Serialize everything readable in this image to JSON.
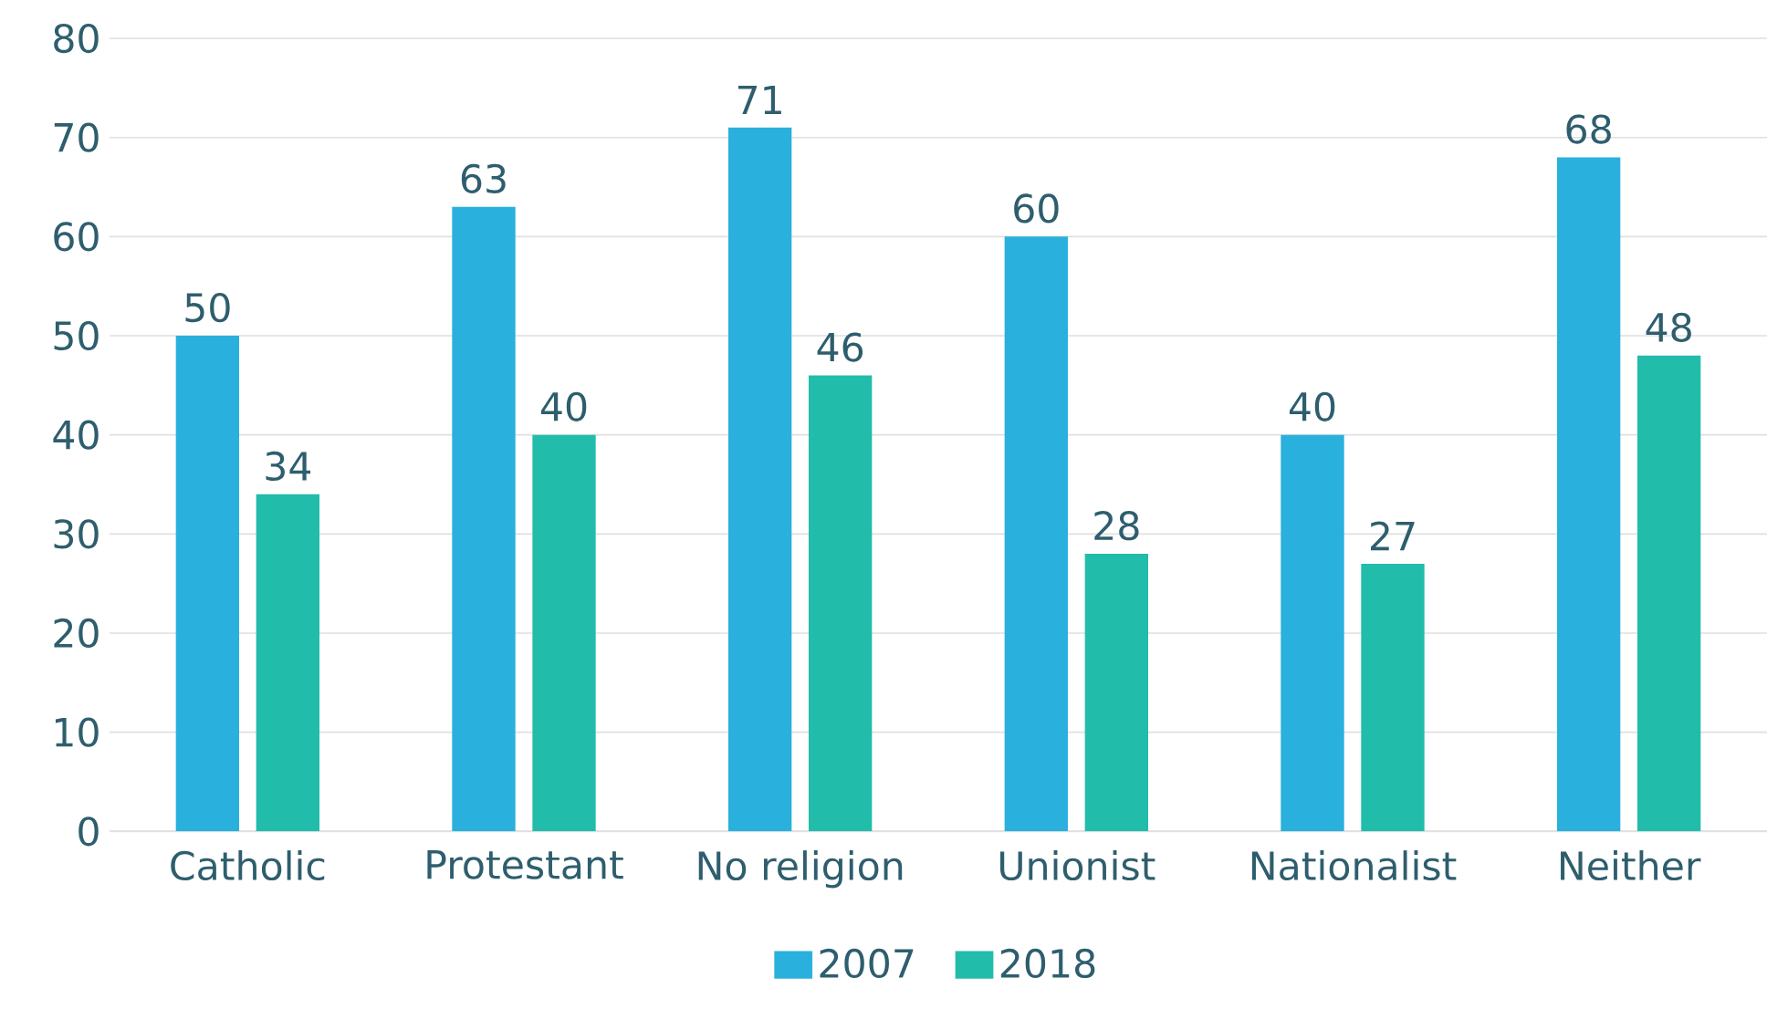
{
  "chart_data": {
    "type": "bar",
    "categories": [
      "Catholic",
      "Protestant",
      "No religion",
      "Unionist",
      "Nationalist",
      "Neither"
    ],
    "series": [
      {
        "name": "2007",
        "color": "#2ab0dc",
        "values": [
          50,
          63,
          71,
          60,
          40,
          68
        ]
      },
      {
        "name": "2018",
        "color": "#22bcaa",
        "values": [
          34,
          40,
          46,
          28,
          27,
          48
        ]
      }
    ],
    "ylim": [
      0,
      80
    ],
    "yticks": [
      0,
      10,
      20,
      30,
      40,
      50,
      60,
      70,
      80
    ],
    "grid": "y",
    "legend": "bottom",
    "data_labels": true
  }
}
